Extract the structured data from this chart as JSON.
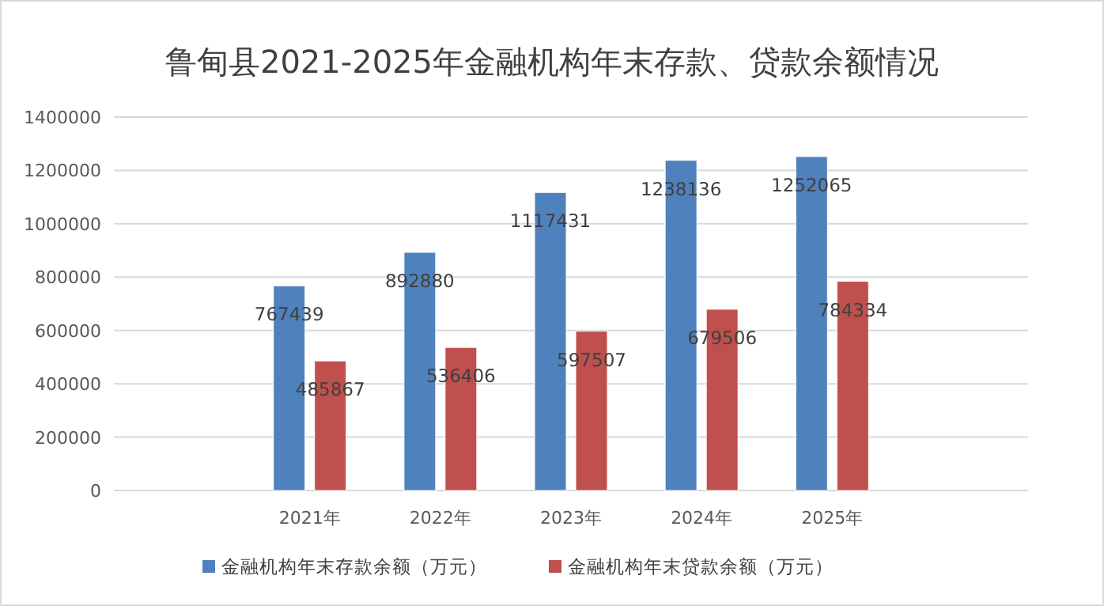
{
  "chart_data": {
    "type": "bar",
    "title": "鲁甸县2021-2025年金融机构年末存款、贷款余额情况",
    "categories": [
      null,
      "2021年",
      "2022年",
      "2023年",
      "2024年",
      "2025年",
      null
    ],
    "series": [
      {
        "name": "金融机构年末存款余额（万元）",
        "color": "#4f81bd",
        "values": [
          null,
          767439,
          892880,
          1117431,
          1238136,
          1252065,
          null
        ]
      },
      {
        "name": "金融机构年末贷款余额（万元）",
        "color": "#c0504d",
        "values": [
          null,
          485867,
          536406,
          597507,
          679506,
          784334,
          null
        ]
      }
    ],
    "ylim": [
      0,
      1400000
    ],
    "yticks": [
      0,
      200000,
      400000,
      600000,
      800000,
      1000000,
      1200000,
      1400000
    ],
    "grid": "y",
    "legend": "bottom",
    "data_labels": true
  }
}
